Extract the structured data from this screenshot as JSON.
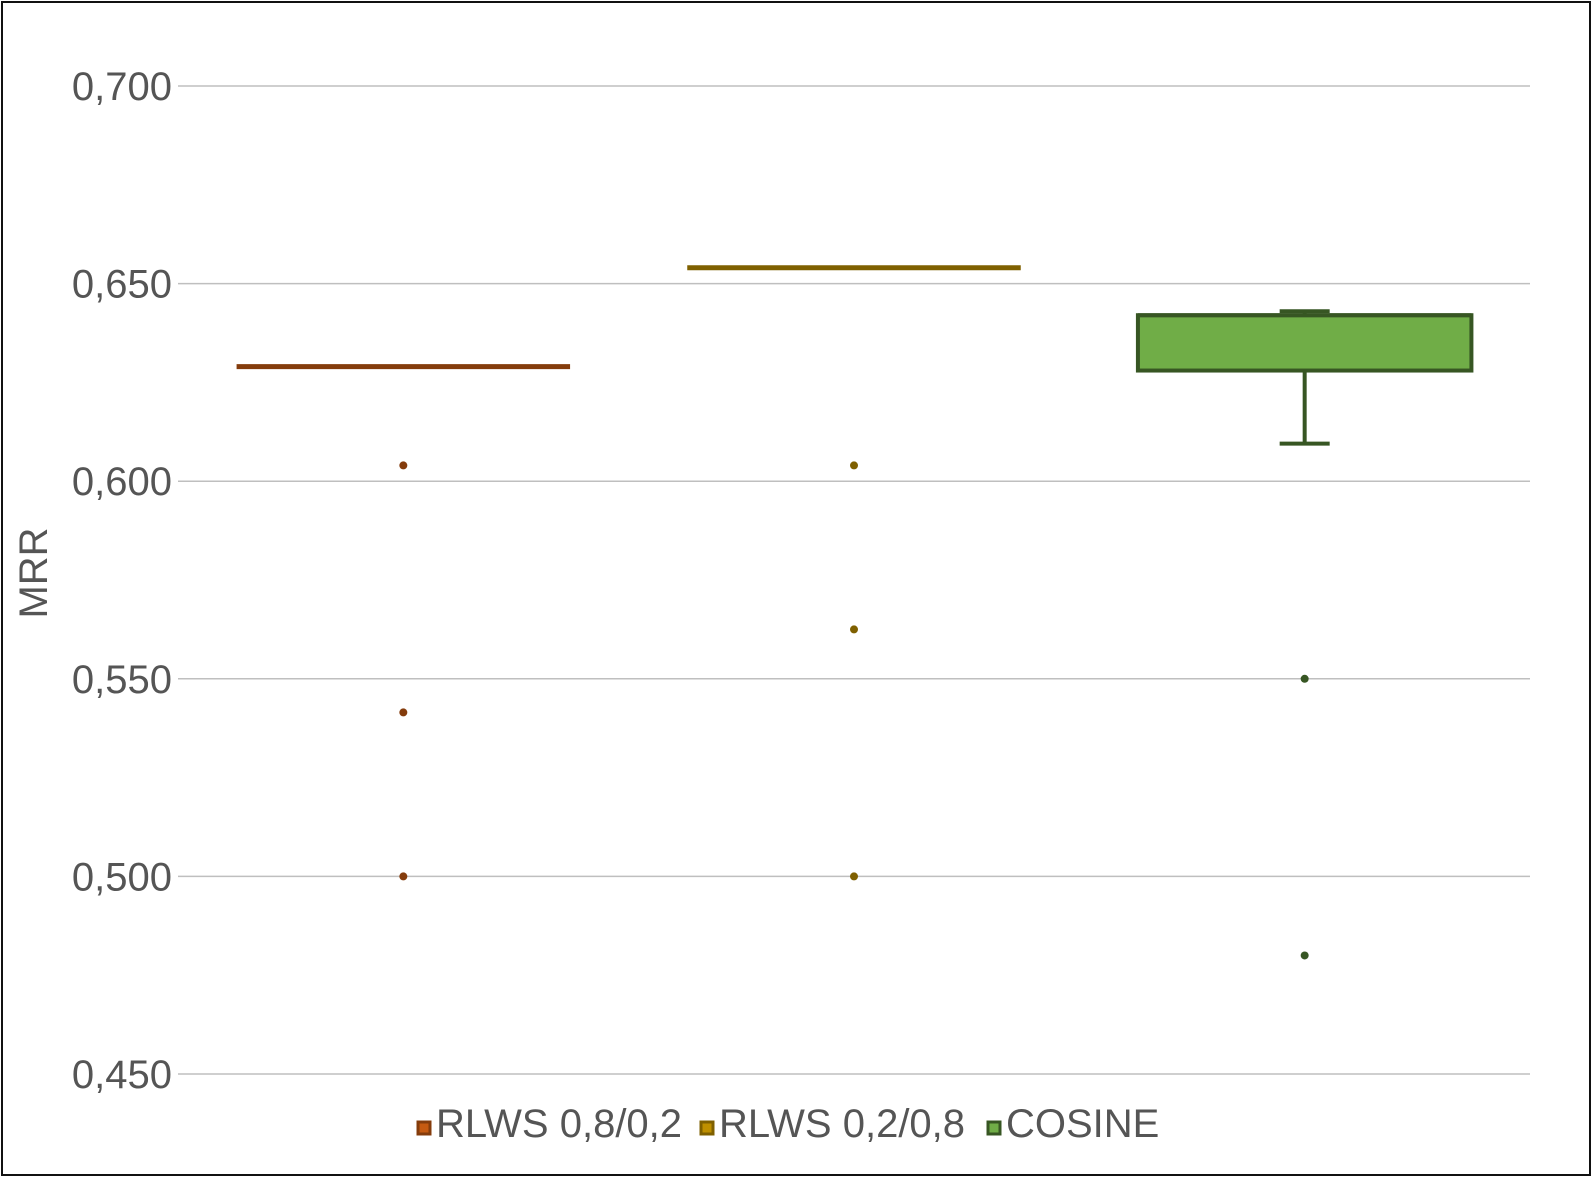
{
  "chart_data": {
    "type": "box",
    "ylabel": "MRR",
    "ylim": [
      0.45,
      0.7
    ],
    "yticks": [
      0.45,
      0.5,
      0.55,
      0.6,
      0.65,
      0.7
    ],
    "ytick_labels": [
      "0,450",
      "0,500",
      "0,550",
      "0,600",
      "0,650",
      "0,700"
    ],
    "grid": true,
    "legend_position": "bottom",
    "series": [
      {
        "name": "RLWS 0,8/0,2",
        "color": "#843c0c",
        "fill": "#c55a11",
        "q1": 0.629,
        "median": 0.629,
        "q3": 0.629,
        "whisker_low": 0.629,
        "whisker_high": 0.629,
        "outliers": [
          0.604,
          0.5415,
          0.5
        ]
      },
      {
        "name": "RLWS 0,2/0,8",
        "color": "#7f6000",
        "fill": "#bf9000",
        "q1": 0.654,
        "median": 0.654,
        "q3": 0.654,
        "whisker_low": 0.654,
        "whisker_high": 0.654,
        "outliers": [
          0.604,
          0.5625,
          0.5
        ]
      },
      {
        "name": "COSINE",
        "color": "#375623",
        "fill": "#70ad47",
        "q1": 0.628,
        "median": 0.642,
        "q3": 0.642,
        "whisker_low": 0.6095,
        "whisker_high": 0.643,
        "outliers": [
          0.55,
          0.48
        ]
      }
    ]
  }
}
